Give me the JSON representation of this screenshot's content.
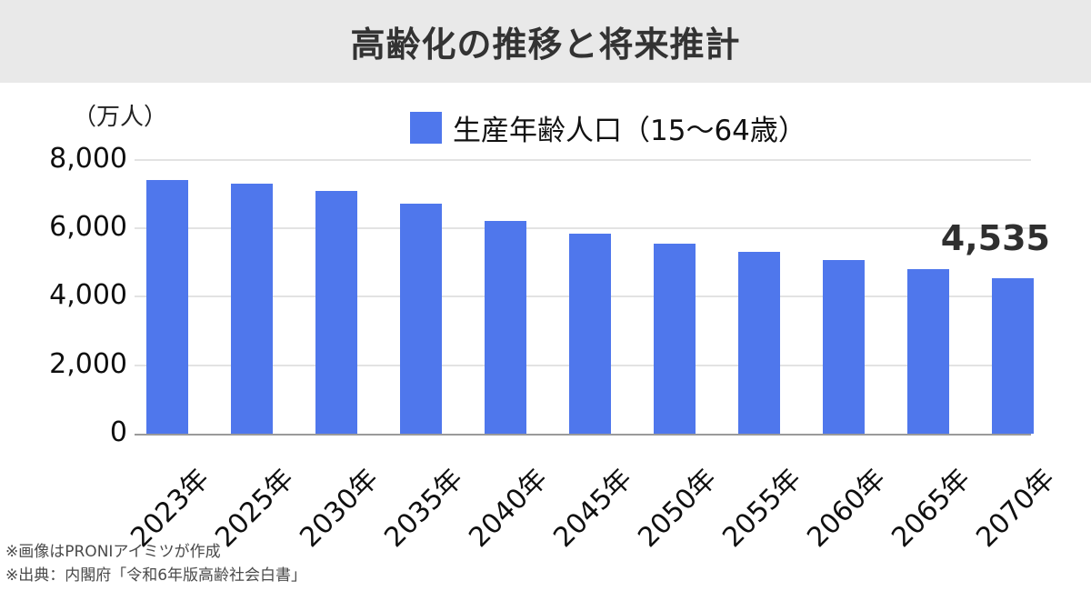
{
  "header": {
    "title": "高齢化の推移と将来推計"
  },
  "chart": {
    "unit_label": "（万人）",
    "legend": {
      "label": "生産年齢人口（15～64歳）"
    },
    "y_axis": {
      "ticks": [
        "8,000",
        "6,000",
        "4,000",
        "2,000",
        "0"
      ]
    },
    "annotation": {
      "label": "4,535"
    }
  },
  "chart_data": {
    "type": "bar",
    "title": "高齢化の推移と将来推計",
    "series_name": "生産年齢人口（15～64歳）",
    "categories": [
      "2023年",
      "2025年",
      "2030年",
      "2035年",
      "2040年",
      "2045年",
      "2050年",
      "2055年",
      "2060年",
      "2065年",
      "2070年"
    ],
    "values": [
      7395,
      7310,
      7076,
      6722,
      6213,
      5832,
      5540,
      5307,
      5078,
      4809,
      4535
    ],
    "unit": "万人",
    "ylabel": "（万人）",
    "ylim": [
      0,
      8000
    ],
    "y_tick_step": 2000,
    "grid": true,
    "legend_position": "top",
    "bar_color": "#4f77ec",
    "annotations": [
      {
        "category": "2070年",
        "text": "4,535"
      }
    ]
  },
  "footer": {
    "lines": [
      "※画像はPRONIアイミツが作成",
      "※出典：内閣府「令和6年版高齢社会白書」"
    ]
  },
  "colors": {
    "bar": "#4f77ec",
    "header_bg": "#e9e9e9",
    "grid": "#e3e3e3",
    "axis": "#9a9a9a"
  }
}
